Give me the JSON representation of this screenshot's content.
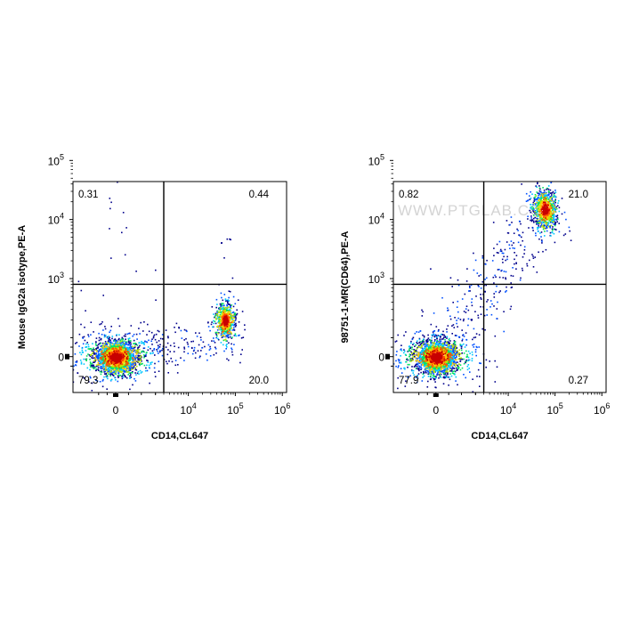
{
  "chart_data": [
    {
      "type": "scatter",
      "subtype": "flow-cytometry-density-dot-plot",
      "xlabel": "CD14,CL647",
      "ylabel": "Mouse IgG2a isotype,PE-A",
      "x_scale": "biexponential",
      "y_scale": "biexponential",
      "x_ticks": [
        "0",
        "10^4",
        "10^5",
        "10^6"
      ],
      "y_ticks": [
        "0",
        "10^3",
        "10^4",
        "10^5"
      ],
      "gates": {
        "x": 3000,
        "y": 800
      },
      "quadrants": {
        "top_left": "0.31",
        "top_right": "0.44",
        "bottom_left": "79.3",
        "bottom_right": "20.0"
      },
      "populations": [
        {
          "name": "negative",
          "x": 0,
          "y": 0,
          "density": "high",
          "quadrant": "bottom_left"
        },
        {
          "name": "CD14+",
          "x": 60000,
          "y": 200,
          "density": "medium",
          "quadrant": "bottom_right"
        }
      ],
      "watermark": ""
    },
    {
      "type": "scatter",
      "subtype": "flow-cytometry-density-dot-plot",
      "xlabel": "CD14,CL647",
      "ylabel": "98751-1-MR(CD64),PE-A",
      "x_scale": "biexponential",
      "y_scale": "biexponential",
      "x_ticks": [
        "0",
        "10^4",
        "10^5",
        "10^6"
      ],
      "y_ticks": [
        "0",
        "10^3",
        "10^4",
        "10^5"
      ],
      "gates": {
        "x": 3000,
        "y": 800
      },
      "quadrants": {
        "top_left": "0.82",
        "top_right": "21.0",
        "bottom_left": "77.9",
        "bottom_right": "0.27"
      },
      "populations": [
        {
          "name": "negative",
          "x": 0,
          "y": 0,
          "density": "high",
          "quadrant": "bottom_left"
        },
        {
          "name": "CD14+CD64+",
          "x": 60000,
          "y": 15000,
          "density": "medium",
          "quadrant": "top_right"
        }
      ],
      "watermark": "WWW.PTGLAB.COM"
    }
  ],
  "colormap": [
    "#00008b",
    "#0050ff",
    "#00c8ff",
    "#00e060",
    "#b8ec00",
    "#ffc800",
    "#ff5000",
    "#c80000"
  ]
}
